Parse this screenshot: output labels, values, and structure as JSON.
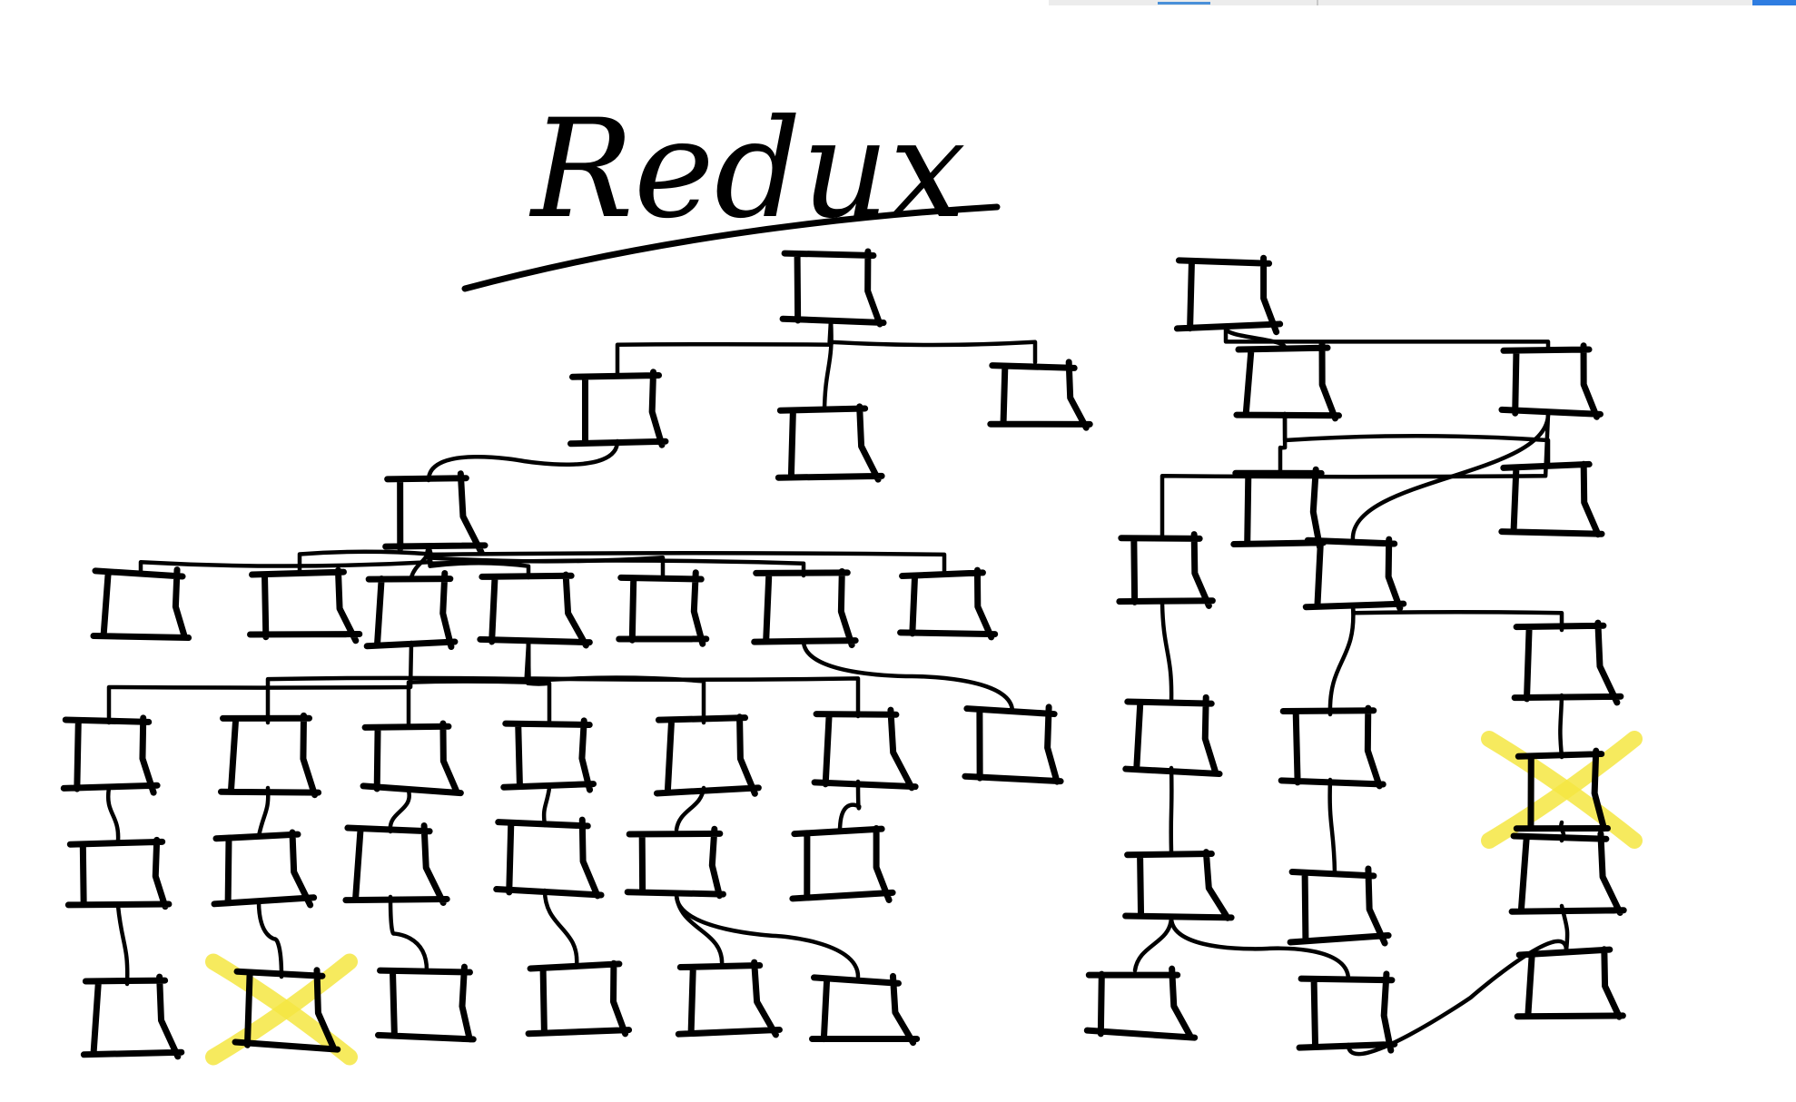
{
  "title": "Redux",
  "colors": {
    "ink": "#000000",
    "highlight": "#f5e642",
    "background": "#ffffff"
  }
}
